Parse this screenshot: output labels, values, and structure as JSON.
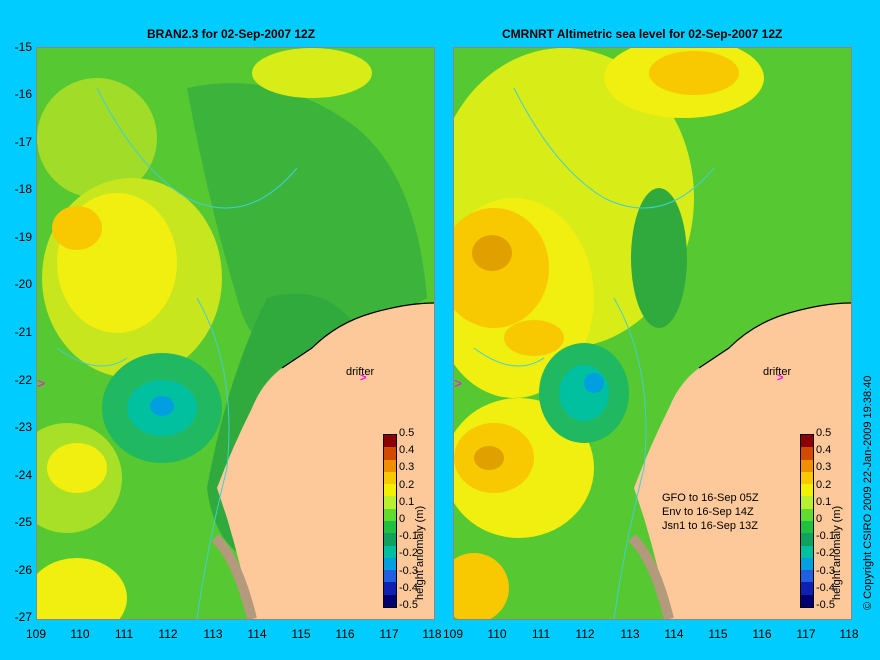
{
  "left_panel": {
    "title": "BRAN2.3 for 02-Sep-2007 12Z"
  },
  "right_panel": {
    "title": "CMRNRT Altimetric sea level  for 02-Sep-2007 12Z",
    "info_lines": [
      "GFO to 16-Sep 05Z",
      "Env to 16-Sep 14Z",
      "Jsn1 to 16-Sep 13Z"
    ]
  },
  "drifter_label": "drifter",
  "colorbar": {
    "title": "height anomaly (m)",
    "ticks": [
      "0.5",
      "0.4",
      "0.3",
      "0.2",
      "0.1",
      "0",
      "-0.1",
      "-0.2",
      "-0.3",
      "-0.4",
      "-0.5"
    ],
    "colors": [
      "#8b0000",
      "#d24a00",
      "#f09000",
      "#f8c800",
      "#f0f000",
      "#b8f030",
      "#60dc30",
      "#20c040",
      "#10a060",
      "#00c0a0",
      "#00a0e0",
      "#2060e0",
      "#1020b0",
      "#000070"
    ]
  },
  "lat_ticks": [
    "-15",
    "-16",
    "-17",
    "-18",
    "-19",
    "-20",
    "-21",
    "-22",
    "-23",
    "-24",
    "-25",
    "-26",
    "-27"
  ],
  "lon_ticks": [
    "109",
    "110",
    "111",
    "112",
    "113",
    "114",
    "115",
    "116",
    "117",
    "118"
  ],
  "copyright": "© Copyright CSIRO 2009   22-Jan-2009 19:38:40",
  "colors": {
    "background": "#00ccff",
    "land": "#fdc99b",
    "coast": "#b49a7c",
    "drifter": "#ff00ff"
  }
}
